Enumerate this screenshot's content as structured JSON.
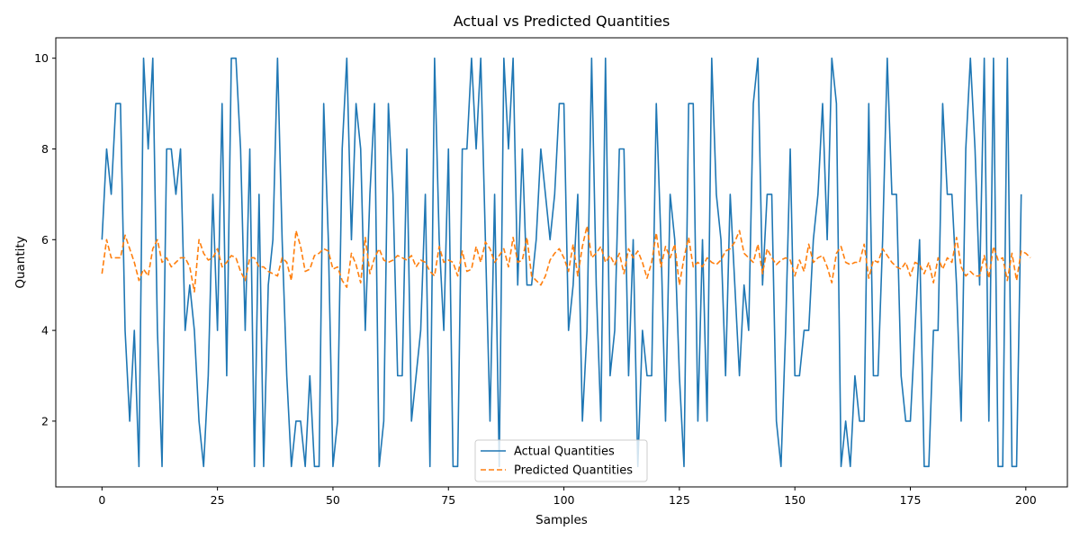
{
  "chart_data": {
    "type": "line",
    "title": "Actual vs Predicted Quantities",
    "xlabel": "Samples",
    "ylabel": "Quantity",
    "xlim": [
      -10,
      209
    ],
    "ylim": [
      0.55,
      10.45
    ],
    "xticks": [
      0,
      25,
      50,
      75,
      100,
      125,
      150,
      175,
      200
    ],
    "yticks": [
      2,
      4,
      6,
      8,
      10
    ],
    "grid": false,
    "legend_position": "lower center",
    "series": [
      {
        "name": "Actual Quantities",
        "color": "#1f77b4",
        "linestyle": "solid",
        "x_start": 0,
        "values": [
          6,
          8,
          7,
          9,
          9,
          4,
          2,
          4,
          1,
          10,
          8,
          10,
          4,
          1,
          8,
          8,
          7,
          8,
          4,
          5,
          4,
          2,
          1,
          3,
          7,
          4,
          9,
          3,
          10,
          10,
          8,
          4,
          8,
          1,
          7,
          1,
          5,
          6,
          10,
          6,
          3,
          1,
          2,
          2,
          1,
          3,
          1,
          1,
          9,
          6,
          1,
          2,
          8,
          10,
          6,
          9,
          8,
          4,
          7,
          9,
          1,
          2,
          9,
          7,
          3,
          3,
          8,
          2,
          3,
          4,
          7,
          1,
          10,
          6,
          4,
          8,
          1,
          1,
          8,
          8,
          10,
          8,
          10,
          6,
          2,
          7,
          1,
          10,
          8,
          10,
          5,
          8,
          5,
          5,
          6,
          8,
          7,
          6,
          7,
          9,
          9,
          4,
          5,
          7,
          2,
          4,
          10,
          5,
          2,
          10,
          3,
          4,
          8,
          8,
          3,
          6,
          1,
          4,
          3,
          3,
          9,
          6,
          2,
          7,
          6,
          3,
          1,
          9,
          9,
          2,
          6,
          2,
          10,
          7,
          6,
          3,
          7,
          5,
          3,
          5,
          4,
          9,
          10,
          5,
          7,
          7,
          2,
          1,
          4,
          8,
          3,
          3,
          4,
          4,
          6,
          7,
          9,
          6,
          10,
          9,
          1,
          2,
          1,
          3,
          2,
          2,
          9,
          3,
          3,
          6,
          10,
          7,
          7,
          3,
          2,
          2,
          4,
          6,
          1,
          1,
          4,
          4,
          9,
          7,
          7,
          5,
          2,
          8,
          10,
          8,
          5,
          10,
          2,
          10,
          1,
          1,
          10,
          1,
          1,
          7
        ]
      },
      {
        "name": "Predicted Quantities",
        "color": "#ff7f0e",
        "linestyle": "dashed",
        "x_start": 0,
        "values": [
          5.25,
          6.0,
          5.6,
          5.6,
          5.6,
          6.1,
          5.8,
          5.5,
          5.1,
          5.35,
          5.2,
          5.8,
          6.0,
          5.5,
          5.6,
          5.4,
          5.5,
          5.6,
          5.6,
          5.4,
          4.85,
          6.0,
          5.7,
          5.55,
          5.6,
          5.8,
          5.4,
          5.5,
          5.65,
          5.6,
          5.3,
          5.1,
          5.6,
          5.6,
          5.4,
          5.4,
          5.3,
          5.25,
          5.2,
          5.6,
          5.5,
          5.1,
          6.2,
          5.85,
          5.3,
          5.35,
          5.65,
          5.7,
          5.8,
          5.75,
          5.35,
          5.4,
          5.1,
          4.95,
          5.7,
          5.45,
          5.05,
          6.05,
          5.25,
          5.6,
          5.8,
          5.55,
          5.5,
          5.55,
          5.65,
          5.6,
          5.55,
          5.65,
          5.4,
          5.55,
          5.5,
          5.3,
          5.2,
          5.85,
          5.5,
          5.55,
          5.5,
          5.2,
          5.75,
          5.3,
          5.35,
          5.85,
          5.5,
          5.95,
          5.8,
          5.5,
          5.65,
          5.8,
          5.4,
          6.05,
          5.5,
          5.55,
          6.05,
          5.2,
          5.1,
          5.0,
          5.2,
          5.55,
          5.7,
          5.8,
          5.6,
          5.3,
          5.9,
          5.2,
          5.85,
          6.3,
          5.6,
          5.7,
          5.85,
          5.5,
          5.65,
          5.45,
          5.7,
          5.25,
          5.8,
          5.6,
          5.75,
          5.5,
          5.15,
          5.5,
          6.15,
          5.4,
          5.85,
          5.6,
          5.9,
          5.0,
          5.6,
          6.05,
          5.4,
          5.5,
          5.4,
          5.6,
          5.5,
          5.45,
          5.55,
          5.75,
          5.8,
          5.95,
          6.2,
          5.7,
          5.6,
          5.5,
          5.9,
          5.25,
          5.8,
          5.6,
          5.45,
          5.55,
          5.6,
          5.55,
          5.2,
          5.55,
          5.3,
          5.9,
          5.5,
          5.6,
          5.65,
          5.4,
          5.05,
          5.7,
          5.85,
          5.5,
          5.45,
          5.5,
          5.5,
          5.9,
          5.15,
          5.55,
          5.5,
          5.8,
          5.65,
          5.5,
          5.4,
          5.35,
          5.5,
          5.2,
          5.5,
          5.45,
          5.25,
          5.5,
          5.05,
          5.6,
          5.35,
          5.6,
          5.5,
          6.05,
          5.4,
          5.2,
          5.3,
          5.2,
          5.2,
          5.65,
          5.15,
          5.85,
          5.55,
          5.6,
          5.1,
          5.7,
          5.1,
          5.75,
          5.7,
          5.6
        ]
      }
    ]
  }
}
